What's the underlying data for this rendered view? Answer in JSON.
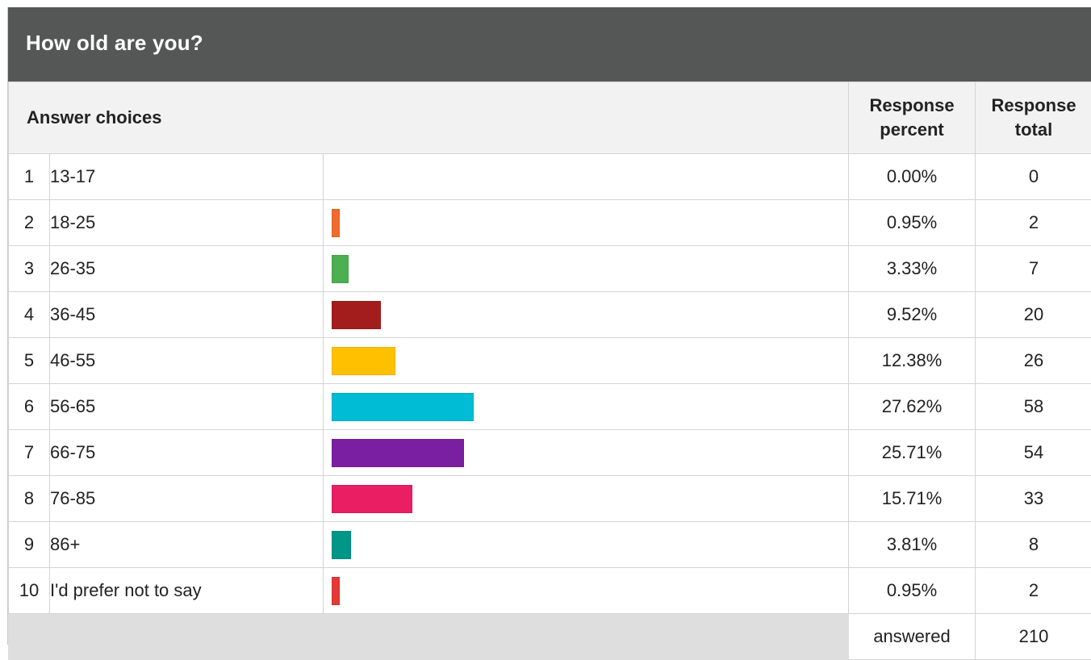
{
  "question": {
    "title": "How old are you?"
  },
  "headers": {
    "answer_choices": "Answer choices",
    "response_percent": "Response percent",
    "response_total": "Response total"
  },
  "summary": {
    "answered_label": "answered",
    "answered_total": "210"
  },
  "colors": {
    "header_bar": "#555656",
    "header_row": "#f2f2f2",
    "footer_blank": "#dedede"
  },
  "chart_data": {
    "type": "bar",
    "orientation": "horizontal",
    "title": "How old are you?",
    "categories": [
      "13-17",
      "18-25",
      "26-35",
      "36-45",
      "46-55",
      "56-65",
      "66-75",
      "76-85",
      "86+",
      "I'd prefer not to say"
    ],
    "row_numbers": [
      "1",
      "2",
      "3",
      "4",
      "5",
      "6",
      "7",
      "8",
      "9",
      "10"
    ],
    "values": [
      0.0,
      0.95,
      3.33,
      9.52,
      12.38,
      27.62,
      25.71,
      15.71,
      3.81,
      0.95
    ],
    "percent_labels": [
      "0.00%",
      "0.95%",
      "3.33%",
      "9.52%",
      "12.38%",
      "27.62%",
      "25.71%",
      "15.71%",
      "3.81%",
      "0.95%"
    ],
    "totals": [
      "0",
      "2",
      "7",
      "20",
      "26",
      "58",
      "54",
      "33",
      "8",
      "2"
    ],
    "colors": [
      "#cccccc",
      "#f26a2e",
      "#4caf50",
      "#a31d1d",
      "#ffc000",
      "#00bcd4",
      "#7b1fa2",
      "#e91e63",
      "#009688",
      "#e53935"
    ],
    "xlim": [
      0,
      100
    ],
    "grid": false,
    "legend": "none"
  }
}
